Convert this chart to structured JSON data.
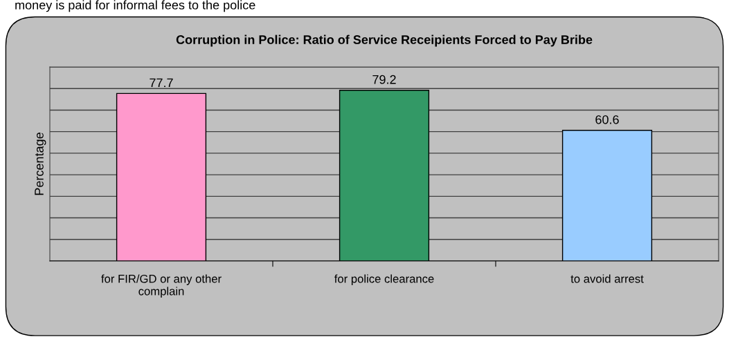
{
  "chart_data": {
    "type": "bar",
    "title": "Corruption in Police: Ratio of Service Receipients Forced to Pay Bribe",
    "ylabel": "Percentage",
    "annotations": [
      "money is paid for informal fees to the police"
    ],
    "categories": [
      "for FIR/GD or any other\ncomplain",
      "for police clearance",
      "to avoid arrest"
    ],
    "values": [
      77.7,
      79.2,
      60.6
    ],
    "colors": [
      "#ff99cc",
      "#339966",
      "#99ccff"
    ],
    "ylim": [
      0,
      90
    ],
    "yticks": [
      {
        "value": 0,
        "label": null
      },
      {
        "value": 10,
        "label": null
      },
      {
        "value": 20,
        "label": null
      },
      {
        "value": 30,
        "label": null
      },
      {
        "value": 40,
        "label": null
      },
      {
        "value": 50,
        "label": null
      },
      {
        "value": 60,
        "label": null
      },
      {
        "value": 70,
        "label": null
      },
      {
        "value": 80,
        "label": null
      },
      {
        "value": 90,
        "label": null
      }
    ],
    "tick_labels": "x",
    "grid": "y",
    "data_labels": true
  }
}
